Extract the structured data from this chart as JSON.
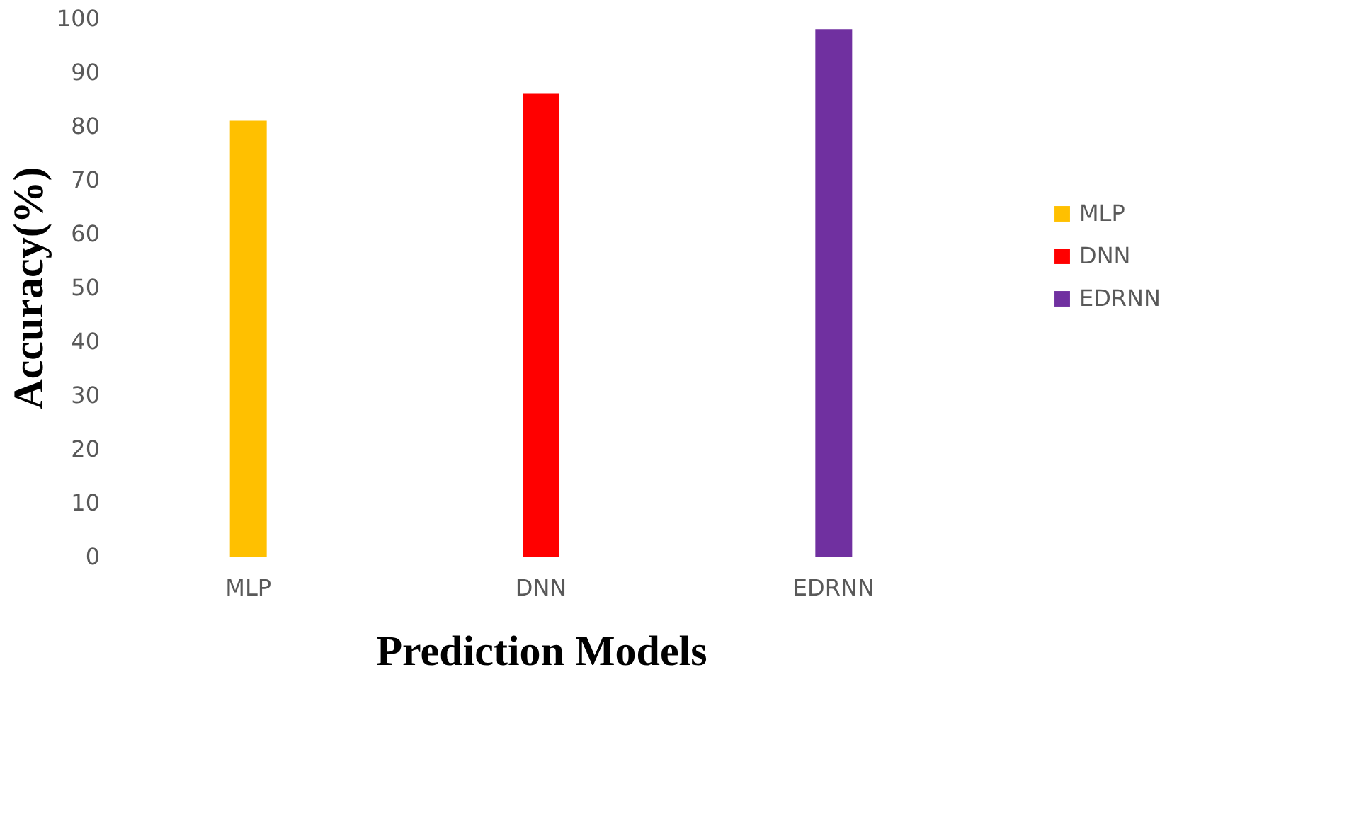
{
  "chart_data": {
    "type": "bar",
    "categories": [
      "MLP",
      "DNN",
      "EDRNN"
    ],
    "series": [
      {
        "name": "MLP",
        "color": "#ffc000",
        "values": [
          81,
          null,
          null
        ]
      },
      {
        "name": "DNN",
        "color": "#ff0000",
        "values": [
          null,
          86,
          null
        ]
      },
      {
        "name": "EDRNN",
        "color": "#7030a0",
        "values": [
          null,
          null,
          98
        ]
      }
    ],
    "xlabel": "Prediction Models",
    "ylabel": "Accuracy(%)",
    "ylim": [
      0,
      100
    ],
    "yticks": [
      0,
      10,
      20,
      30,
      40,
      50,
      60,
      70,
      80,
      90,
      100
    ],
    "grid": false,
    "legend": "right"
  }
}
